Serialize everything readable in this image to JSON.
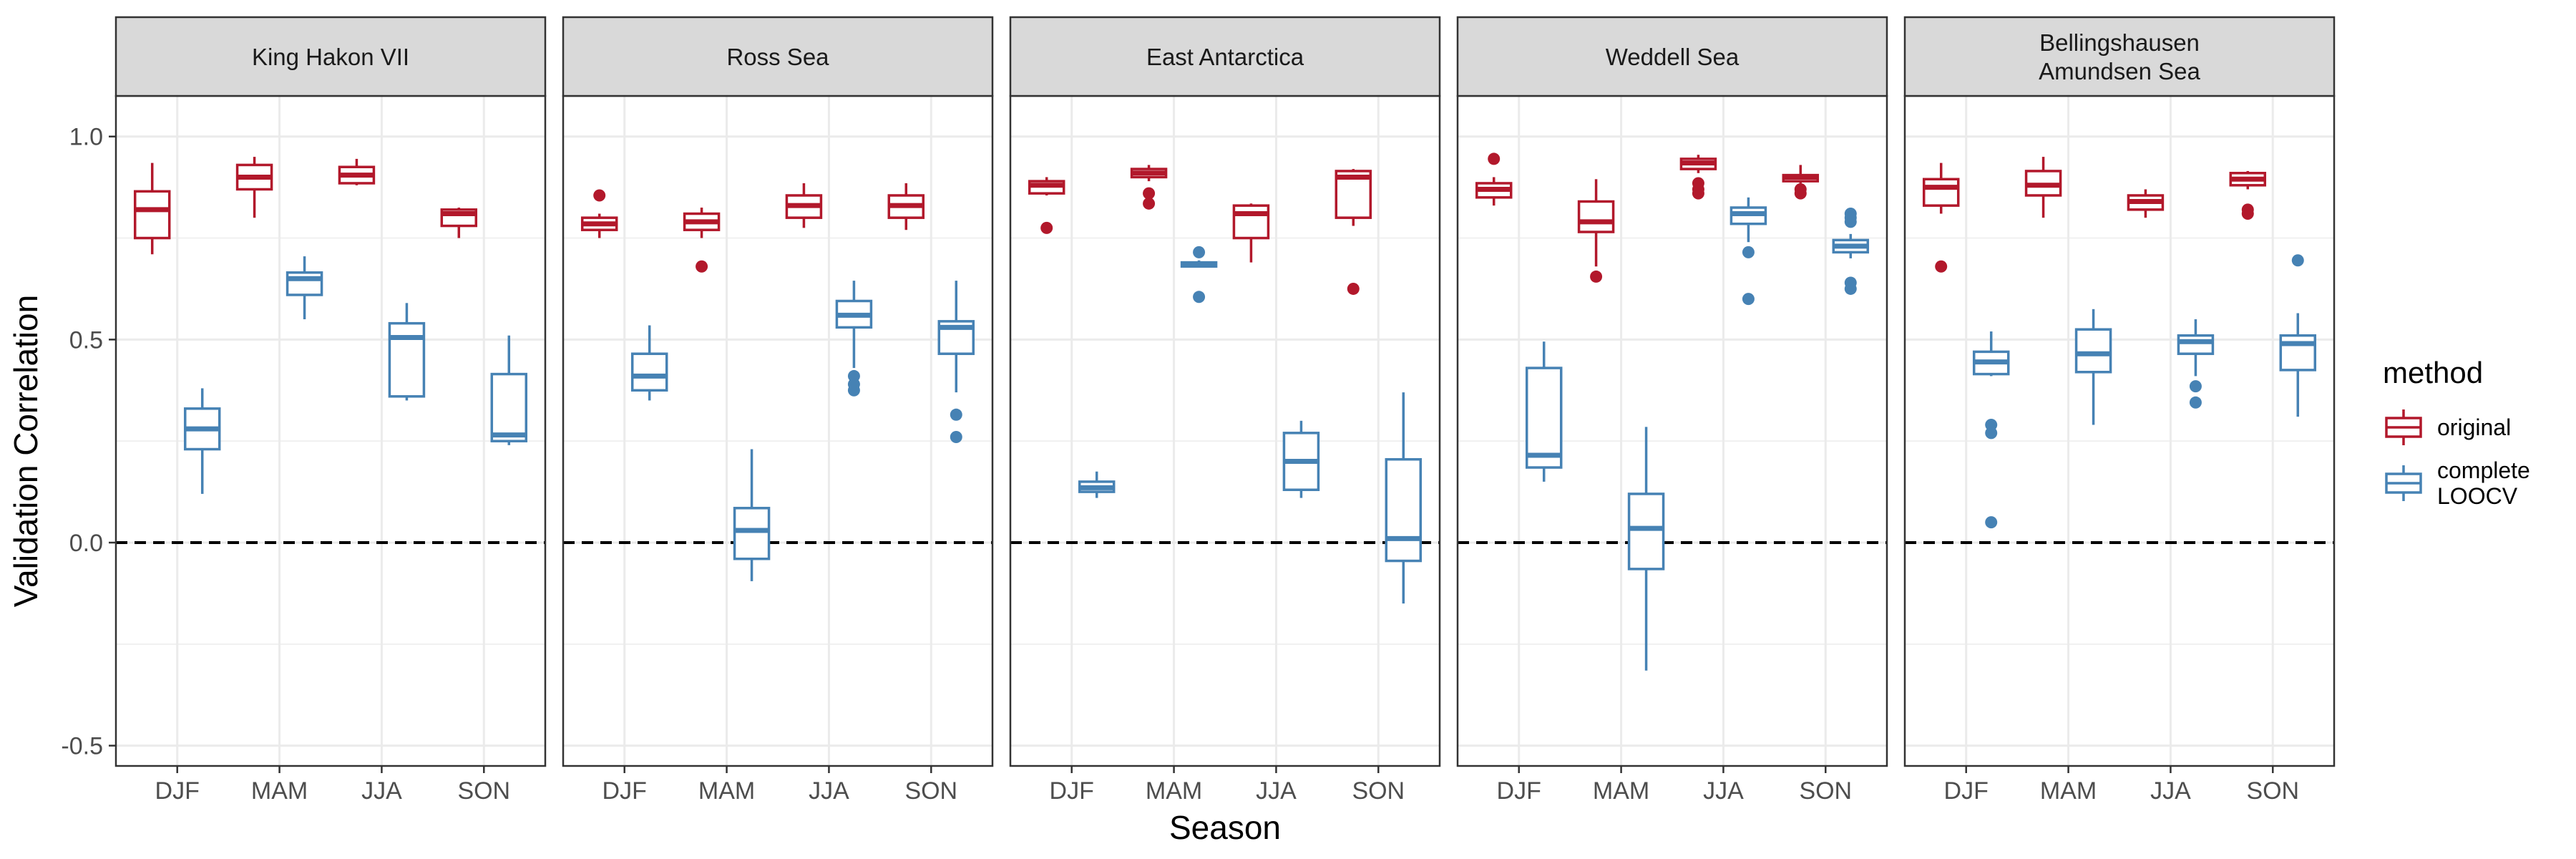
{
  "chart_data": {
    "type": "boxplot",
    "facets": [
      {
        "title_lines": [
          "King Hakon VII"
        ],
        "boxes": [
          {
            "season": "DJF",
            "method": "original",
            "lower_whisker": 0.71,
            "q1": 0.75,
            "median": 0.82,
            "q3": 0.865,
            "upper_whisker": 0.935,
            "outliers": []
          },
          {
            "season": "DJF",
            "method": "complete LOOCV",
            "lower_whisker": 0.12,
            "q1": 0.23,
            "median": 0.28,
            "q3": 0.33,
            "upper_whisker": 0.38,
            "outliers": []
          },
          {
            "season": "MAM",
            "method": "original",
            "lower_whisker": 0.8,
            "q1": 0.87,
            "median": 0.9,
            "q3": 0.93,
            "upper_whisker": 0.95,
            "outliers": []
          },
          {
            "season": "MAM",
            "method": "complete LOOCV",
            "lower_whisker": 0.55,
            "q1": 0.61,
            "median": 0.65,
            "q3": 0.665,
            "upper_whisker": 0.705,
            "outliers": []
          },
          {
            "season": "JJA",
            "method": "original",
            "lower_whisker": 0.88,
            "q1": 0.885,
            "median": 0.905,
            "q3": 0.925,
            "upper_whisker": 0.945,
            "outliers": []
          },
          {
            "season": "JJA",
            "method": "complete LOOCV",
            "lower_whisker": 0.35,
            "q1": 0.36,
            "median": 0.505,
            "q3": 0.54,
            "upper_whisker": 0.59,
            "outliers": []
          },
          {
            "season": "SON",
            "method": "original",
            "lower_whisker": 0.75,
            "q1": 0.78,
            "median": 0.81,
            "q3": 0.82,
            "upper_whisker": 0.825,
            "outliers": []
          },
          {
            "season": "SON",
            "method": "complete LOOCV",
            "lower_whisker": 0.24,
            "q1": 0.25,
            "median": 0.265,
            "q3": 0.415,
            "upper_whisker": 0.51,
            "outliers": []
          }
        ]
      },
      {
        "title_lines": [
          "Ross Sea"
        ],
        "boxes": [
          {
            "season": "DJF",
            "method": "original",
            "lower_whisker": 0.75,
            "q1": 0.77,
            "median": 0.785,
            "q3": 0.8,
            "upper_whisker": 0.81,
            "outliers": [
              0.855
            ]
          },
          {
            "season": "DJF",
            "method": "complete LOOCV",
            "lower_whisker": 0.35,
            "q1": 0.375,
            "median": 0.41,
            "q3": 0.465,
            "upper_whisker": 0.535,
            "outliers": []
          },
          {
            "season": "MAM",
            "method": "original",
            "lower_whisker": 0.75,
            "q1": 0.77,
            "median": 0.79,
            "q3": 0.81,
            "upper_whisker": 0.825,
            "outliers": [
              0.68
            ]
          },
          {
            "season": "MAM",
            "method": "complete LOOCV",
            "lower_whisker": -0.095,
            "q1": -0.04,
            "median": 0.03,
            "q3": 0.085,
            "upper_whisker": 0.23,
            "outliers": []
          },
          {
            "season": "JJA",
            "method": "original",
            "lower_whisker": 0.775,
            "q1": 0.8,
            "median": 0.83,
            "q3": 0.855,
            "upper_whisker": 0.885,
            "outliers": []
          },
          {
            "season": "JJA",
            "method": "complete LOOCV",
            "lower_whisker": 0.43,
            "q1": 0.53,
            "median": 0.56,
            "q3": 0.595,
            "upper_whisker": 0.645,
            "outliers": [
              0.41,
              0.39,
              0.375
            ]
          },
          {
            "season": "SON",
            "method": "original",
            "lower_whisker": 0.77,
            "q1": 0.8,
            "median": 0.83,
            "q3": 0.855,
            "upper_whisker": 0.885,
            "outliers": []
          },
          {
            "season": "SON",
            "method": "complete LOOCV",
            "lower_whisker": 0.37,
            "q1": 0.465,
            "median": 0.53,
            "q3": 0.545,
            "upper_whisker": 0.645,
            "outliers": [
              0.315,
              0.26
            ]
          }
        ]
      },
      {
        "title_lines": [
          "East Antarctica"
        ],
        "boxes": [
          {
            "season": "DJF",
            "method": "original",
            "lower_whisker": 0.855,
            "q1": 0.86,
            "median": 0.88,
            "q3": 0.89,
            "upper_whisker": 0.9,
            "outliers": [
              0.775
            ]
          },
          {
            "season": "DJF",
            "method": "complete LOOCV",
            "lower_whisker": 0.11,
            "q1": 0.125,
            "median": 0.135,
            "q3": 0.15,
            "upper_whisker": 0.175,
            "outliers": []
          },
          {
            "season": "MAM",
            "method": "original",
            "lower_whisker": 0.89,
            "q1": 0.9,
            "median": 0.91,
            "q3": 0.92,
            "upper_whisker": 0.93,
            "outliers": [
              0.86,
              0.835
            ]
          },
          {
            "season": "MAM",
            "method": "complete LOOCV",
            "lower_whisker": 0.68,
            "q1": 0.68,
            "median": 0.685,
            "q3": 0.69,
            "upper_whisker": 0.695,
            "outliers": [
              0.715,
              0.605
            ]
          },
          {
            "season": "JJA",
            "method": "original",
            "lower_whisker": 0.69,
            "q1": 0.75,
            "median": 0.81,
            "q3": 0.83,
            "upper_whisker": 0.835,
            "outliers": []
          },
          {
            "season": "JJA",
            "method": "complete LOOCV",
            "lower_whisker": 0.11,
            "q1": 0.13,
            "median": 0.2,
            "q3": 0.27,
            "upper_whisker": 0.3,
            "outliers": []
          },
          {
            "season": "SON",
            "method": "original",
            "lower_whisker": 0.78,
            "q1": 0.8,
            "median": 0.9,
            "q3": 0.915,
            "upper_whisker": 0.92,
            "outliers": [
              0.625
            ]
          },
          {
            "season": "SON",
            "method": "complete LOOCV",
            "lower_whisker": -0.15,
            "q1": -0.045,
            "median": 0.01,
            "q3": 0.205,
            "upper_whisker": 0.37,
            "outliers": []
          }
        ]
      },
      {
        "title_lines": [
          "Weddell Sea"
        ],
        "boxes": [
          {
            "season": "DJF",
            "method": "original",
            "lower_whisker": 0.83,
            "q1": 0.85,
            "median": 0.87,
            "q3": 0.885,
            "upper_whisker": 0.9,
            "outliers": [
              0.945
            ]
          },
          {
            "season": "DJF",
            "method": "complete LOOCV",
            "lower_whisker": 0.15,
            "q1": 0.185,
            "median": 0.215,
            "q3": 0.43,
            "upper_whisker": 0.495,
            "outliers": []
          },
          {
            "season": "MAM",
            "method": "original",
            "lower_whisker": 0.68,
            "q1": 0.765,
            "median": 0.79,
            "q3": 0.84,
            "upper_whisker": 0.895,
            "outliers": [
              0.655
            ]
          },
          {
            "season": "MAM",
            "method": "complete LOOCV",
            "lower_whisker": -0.315,
            "q1": -0.065,
            "median": 0.035,
            "q3": 0.12,
            "upper_whisker": 0.285,
            "outliers": []
          },
          {
            "season": "JJA",
            "method": "original",
            "lower_whisker": 0.91,
            "q1": 0.92,
            "median": 0.935,
            "q3": 0.945,
            "upper_whisker": 0.955,
            "outliers": [
              0.885,
              0.87,
              0.86
            ]
          },
          {
            "season": "JJA",
            "method": "complete LOOCV",
            "lower_whisker": 0.74,
            "q1": 0.785,
            "median": 0.81,
            "q3": 0.825,
            "upper_whisker": 0.85,
            "outliers": [
              0.715,
              0.6
            ]
          },
          {
            "season": "SON",
            "method": "original",
            "lower_whisker": 0.885,
            "q1": 0.89,
            "median": 0.9,
            "q3": 0.905,
            "upper_whisker": 0.93,
            "outliers": [
              0.87,
              0.86
            ]
          },
          {
            "season": "SON",
            "method": "complete LOOCV",
            "lower_whisker": 0.7,
            "q1": 0.715,
            "median": 0.73,
            "q3": 0.745,
            "upper_whisker": 0.76,
            "outliers": [
              0.81,
              0.8,
              0.79,
              0.64,
              0.625
            ]
          }
        ]
      },
      {
        "title_lines": [
          "Bellingshausen",
          "Amundsen Sea"
        ],
        "boxes": [
          {
            "season": "DJF",
            "method": "original",
            "lower_whisker": 0.81,
            "q1": 0.83,
            "median": 0.875,
            "q3": 0.895,
            "upper_whisker": 0.935,
            "outliers": [
              0.68
            ]
          },
          {
            "season": "DJF",
            "method": "complete LOOCV",
            "lower_whisker": 0.41,
            "q1": 0.415,
            "median": 0.445,
            "q3": 0.47,
            "upper_whisker": 0.52,
            "outliers": [
              0.29,
              0.27,
              0.05
            ]
          },
          {
            "season": "MAM",
            "method": "original",
            "lower_whisker": 0.8,
            "q1": 0.855,
            "median": 0.88,
            "q3": 0.915,
            "upper_whisker": 0.95,
            "outliers": []
          },
          {
            "season": "MAM",
            "method": "complete LOOCV",
            "lower_whisker": 0.29,
            "q1": 0.42,
            "median": 0.465,
            "q3": 0.525,
            "upper_whisker": 0.575,
            "outliers": []
          },
          {
            "season": "JJA",
            "method": "original",
            "lower_whisker": 0.8,
            "q1": 0.82,
            "median": 0.84,
            "q3": 0.855,
            "upper_whisker": 0.87,
            "outliers": []
          },
          {
            "season": "JJA",
            "method": "complete LOOCV",
            "lower_whisker": 0.41,
            "q1": 0.465,
            "median": 0.495,
            "q3": 0.51,
            "upper_whisker": 0.55,
            "outliers": [
              0.385,
              0.345
            ]
          },
          {
            "season": "SON",
            "method": "original",
            "lower_whisker": 0.87,
            "q1": 0.88,
            "median": 0.895,
            "q3": 0.91,
            "upper_whisker": 0.915,
            "outliers": [
              0.82,
              0.81
            ]
          },
          {
            "season": "SON",
            "method": "complete LOOCV",
            "lower_whisker": 0.31,
            "q1": 0.425,
            "median": 0.49,
            "q3": 0.51,
            "upper_whisker": 0.565,
            "outliers": [
              0.695
            ]
          }
        ]
      }
    ],
    "categories": [
      "DJF",
      "MAM",
      "JJA",
      "SON"
    ],
    "xlabel": "Season",
    "ylabel": "Validation Correlation",
    "ylim": [
      -0.55,
      1.1
    ],
    "y_ticks": [
      -0.5,
      0,
      0.5,
      1
    ],
    "y_tick_labels": [
      "-0.5",
      "0.0",
      "0.5",
      "1.0"
    ],
    "hline": 0,
    "grid": true,
    "legend": {
      "title": "method",
      "position": "right",
      "items": [
        {
          "method": "original",
          "lines": [
            "original"
          ]
        },
        {
          "method": "complete LOOCV",
          "lines": [
            "complete",
            "LOOCV"
          ]
        }
      ]
    },
    "colors": {
      "original": "#B2182B",
      "complete LOOCV": "#4682B4"
    }
  }
}
